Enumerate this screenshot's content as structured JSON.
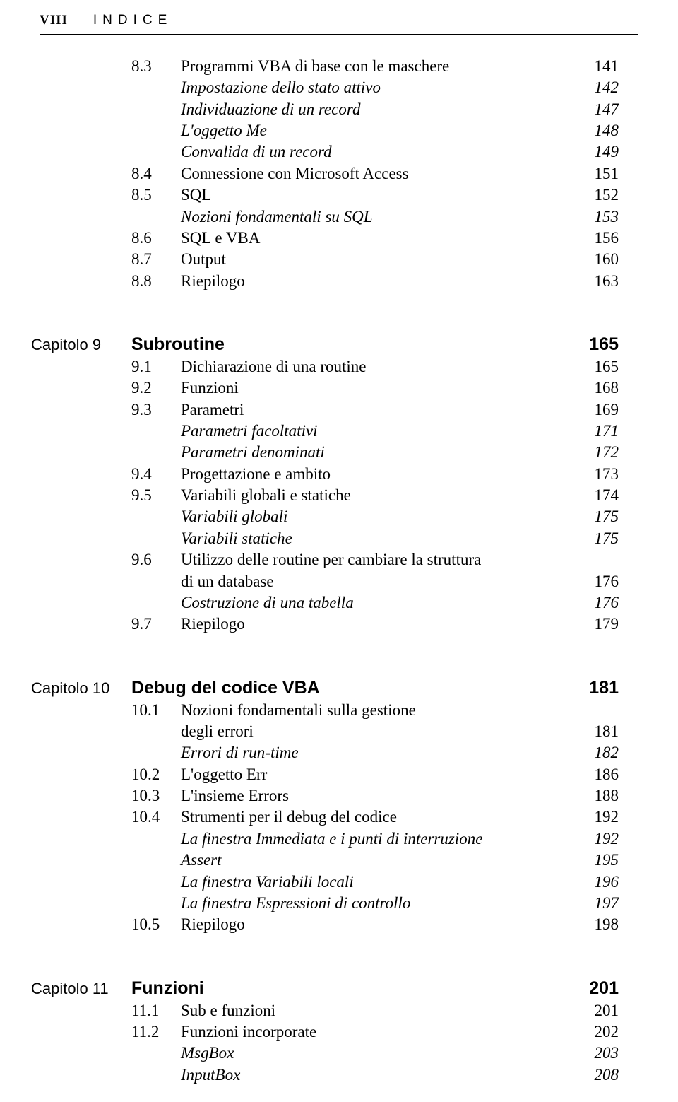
{
  "header": {
    "page_number": "VIII",
    "title": "INDICE"
  },
  "top_rows": [
    {
      "num": "8.3",
      "label": "Programmi VBA di base con le maschere",
      "page": "141",
      "italic": false
    },
    {
      "num": "",
      "label": "Impostazione dello stato attivo",
      "page": "142",
      "italic": true
    },
    {
      "num": "",
      "label": "Individuazione di un record",
      "page": "147",
      "italic": true
    },
    {
      "num": "",
      "label": "L'oggetto Me",
      "page": "148",
      "italic": true
    },
    {
      "num": "",
      "label": "Convalida di un record",
      "page": "149",
      "italic": true
    },
    {
      "num": "8.4",
      "label": "Connessione con Microsoft Access",
      "page": "151",
      "italic": false
    },
    {
      "num": "8.5",
      "label": "SQL",
      "page": "152",
      "italic": false
    },
    {
      "num": "",
      "label": "Nozioni fondamentali su SQL",
      "page": "153",
      "italic": true
    },
    {
      "num": "8.6",
      "label": "SQL e VBA",
      "page": "156",
      "italic": false
    },
    {
      "num": "8.7",
      "label": "Output",
      "page": "160",
      "italic": false
    },
    {
      "num": "8.8",
      "label": "Riepilogo",
      "page": "163",
      "italic": false
    }
  ],
  "chapters": [
    {
      "chapter_label": "Capitolo 9",
      "title": "Subroutine",
      "page": "165",
      "rows": [
        {
          "num": "9.1",
          "label": "Dichiarazione di una routine",
          "page": "165",
          "italic": false
        },
        {
          "num": "9.2",
          "label": "Funzioni",
          "page": "168",
          "italic": false
        },
        {
          "num": "9.3",
          "label": "Parametri",
          "page": "169",
          "italic": false
        },
        {
          "num": "",
          "label": "Parametri facoltativi",
          "page": "171",
          "italic": true
        },
        {
          "num": "",
          "label": "Parametri denominati",
          "page": "172",
          "italic": true
        },
        {
          "num": "9.4",
          "label": "Progettazione e ambito",
          "page": "173",
          "italic": false
        },
        {
          "num": "9.5",
          "label": "Variabili globali e statiche",
          "page": "174",
          "italic": false
        },
        {
          "num": "",
          "label": "Variabili globali",
          "page": "175",
          "italic": true
        },
        {
          "num": "",
          "label": "Variabili statiche",
          "page": "175",
          "italic": true
        },
        {
          "num": "9.6",
          "label_lines": [
            "Utilizzo delle routine per cambiare la struttura",
            "di un database"
          ],
          "page": "176",
          "italic": false
        },
        {
          "num": "",
          "label": "Costruzione di una tabella",
          "page": "176",
          "italic": true
        },
        {
          "num": "9.7",
          "label": "Riepilogo",
          "page": "179",
          "italic": false
        }
      ]
    },
    {
      "chapter_label": "Capitolo 10",
      "title": "Debug del codice VBA",
      "page": "181",
      "rows": [
        {
          "num": "10.1",
          "label_lines": [
            "Nozioni fondamentali sulla gestione",
            "degli errori"
          ],
          "page": "181",
          "italic": false
        },
        {
          "num": "",
          "label": "Errori di run-time",
          "page": "182",
          "italic": true
        },
        {
          "num": "10.2",
          "label": "L'oggetto Err",
          "page": "186",
          "italic": false
        },
        {
          "num": "10.3",
          "label": "L'insieme Errors",
          "page": "188",
          "italic": false
        },
        {
          "num": "10.4",
          "label": "Strumenti per il debug del codice",
          "page": "192",
          "italic": false
        },
        {
          "num": "",
          "label": "La finestra Immediata e i punti di interruzione",
          "page": "192",
          "italic": true
        },
        {
          "num": "",
          "label": "Assert",
          "page": "195",
          "italic": true
        },
        {
          "num": "",
          "label": "La finestra Variabili locali",
          "page": "196",
          "italic": true
        },
        {
          "num": "",
          "label": "La finestra Espressioni di controllo",
          "page": "197",
          "italic": true
        },
        {
          "num": "10.5",
          "label": "Riepilogo",
          "page": "198",
          "italic": false
        }
      ]
    },
    {
      "chapter_label": "Capitolo 11",
      "title": "Funzioni",
      "page": "201",
      "rows": [
        {
          "num": "11.1",
          "label": "Sub e funzioni",
          "page": "201",
          "italic": false
        },
        {
          "num": "11.2",
          "label": "Funzioni incorporate",
          "page": "202",
          "italic": false
        },
        {
          "num": "",
          "label": "MsgBox",
          "page": "203",
          "italic": true
        },
        {
          "num": "",
          "label": "InputBox",
          "page": "208",
          "italic": true
        }
      ]
    }
  ]
}
